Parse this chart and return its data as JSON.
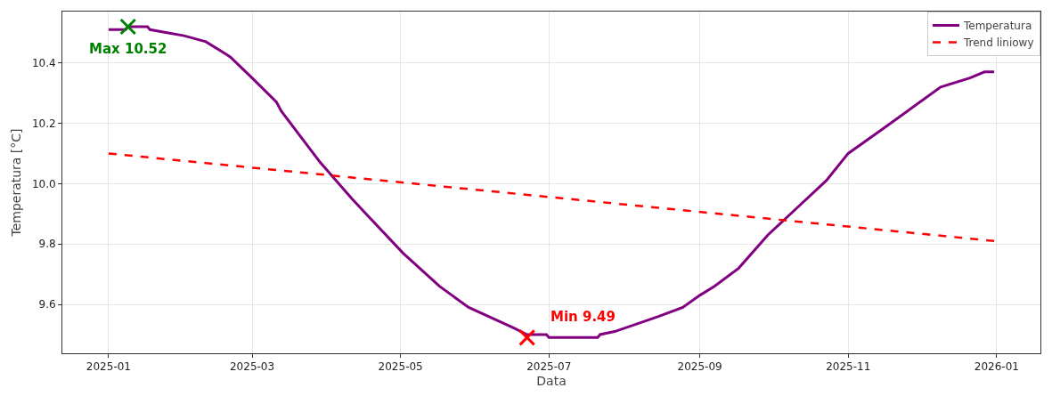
{
  "chart_data": {
    "type": "line",
    "xlabel": "Data",
    "ylabel": "Temperatura [°C]",
    "xlim": [
      "2024-12-13",
      "2026-01-19"
    ],
    "ylim": [
      9.438,
      10.57
    ],
    "xticks": [
      "2025-01",
      "2025-03",
      "2025-05",
      "2025-07",
      "2025-09",
      "2025-11",
      "2026-01"
    ],
    "yticks": [
      9.6,
      9.8,
      {
        "value": 10,
        "label": "10.0"
      },
      10.2,
      10.4
    ],
    "grid": true,
    "legend": "top right",
    "marker": "none",
    "series": [
      {
        "name": "Temperatura",
        "color": "#800080",
        "line_style": "solid",
        "x": [
          "2025-01-01",
          "2025-01-08",
          "2025-01-09",
          "2025-01-17",
          "2025-01-18",
          "2025-01-25",
          "2025-02-01",
          "2025-02-10",
          "2025-02-20",
          "2025-03-01",
          "2025-03-11",
          "2025-03-13",
          "2025-03-29",
          "2025-04-11",
          "2025-04-18",
          "2025-05-02",
          "2025-05-17",
          "2025-05-29",
          "2025-06-17",
          "2025-06-22",
          "2025-06-30",
          "2025-07-01",
          "2025-07-21",
          "2025-07-22",
          "2025-07-28",
          "2025-08-15",
          "2025-08-25",
          "2025-09-01",
          "2025-09-07",
          "2025-09-17",
          "2025-09-29",
          "2025-10-11",
          "2025-10-23",
          "2025-11-01",
          "2025-11-15",
          "2025-11-27",
          "2025-12-09",
          "2025-12-21",
          "2025-12-27",
          "2025-12-31"
        ],
        "values": [
          10.51,
          10.51,
          10.52,
          10.52,
          10.51,
          10.5,
          10.49,
          10.47,
          10.42,
          10.35,
          10.27,
          10.24,
          10.07,
          9.95,
          9.89,
          9.77,
          9.66,
          9.59,
          9.52,
          9.5,
          9.5,
          9.49,
          9.49,
          9.5,
          9.51,
          9.56,
          9.59,
          9.63,
          9.66,
          9.72,
          9.83,
          9.92,
          10.01,
          10.1,
          10.18,
          10.25,
          10.32,
          10.35,
          10.37,
          10.37
        ]
      },
      {
        "name": "Trend liniowy",
        "color": "#ff0000",
        "line_style": "dashed",
        "x": [
          "2025-01-01",
          "2025-12-31"
        ],
        "values": [
          10.1,
          9.81
        ]
      },
      {
        "type": "scatter",
        "color": "#008000",
        "marker": "cross",
        "x": [
          "2025-01-09"
        ],
        "values": [
          10.52
        ]
      },
      {
        "type": "scatter",
        "color": "#ff0000",
        "marker": "cross",
        "x": [
          "2025-06-22"
        ],
        "values": [
          9.49
        ]
      }
    ],
    "annotations": [
      {
        "text": "Max 10.52",
        "x": "2025-01-09",
        "y": 10.52
      },
      {
        "text": "Min 9.49",
        "x": "2025-06-22",
        "y": 9.49
      }
    ]
  }
}
